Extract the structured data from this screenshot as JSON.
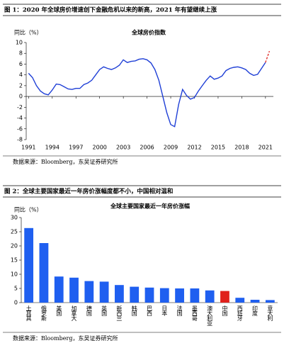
{
  "chart_data": [
    {
      "type": "line",
      "caption": "图 1：2020 年全球房价增速创下金融危机以来的新高，2021 年有望继续上涨",
      "title": "全球房价指数",
      "ylabel": "同比（%）",
      "source": "数据来源：Bloomberg，东吴证券研究所",
      "x": [
        1991,
        1991.5,
        1992,
        1992.5,
        1993,
        1993.5,
        1994,
        1994.5,
        1995,
        1995.5,
        1996,
        1996.5,
        1997,
        1997.5,
        1998,
        1998.5,
        1999,
        1999.5,
        2000,
        2000.5,
        2001,
        2001.5,
        2002,
        2002.5,
        2003,
        2003.5,
        2004,
        2004.5,
        2005,
        2005.5,
        2006,
        2006.5,
        2007,
        2007.5,
        2008,
        2008.5,
        2009,
        2009.5,
        2010,
        2010.5,
        2011,
        2011.5,
        2012,
        2012.5,
        2013,
        2013.5,
        2014,
        2014.5,
        2015,
        2015.5,
        2016,
        2016.5,
        2017,
        2017.5,
        2018,
        2018.5,
        2019,
        2019.5,
        2020,
        2020.5,
        2021,
        2021.5
      ],
      "series": [
        {
          "color": "#1f3fd6",
          "dashed": false,
          "values": [
            4.3,
            3.5,
            2,
            1,
            0.5,
            0.3,
            1.2,
            2.3,
            2.2,
            1.8,
            1.4,
            1.3,
            1.5,
            1.5,
            2.2,
            2.5,
            3,
            4,
            5,
            5.5,
            5.2,
            5,
            5.3,
            5.8,
            6.8,
            6.3,
            6.5,
            6.6,
            6.9,
            7,
            6.8,
            6.2,
            5,
            3,
            0,
            -3,
            -5.2,
            -5.6,
            -1.5,
            1.3,
            0.2,
            -0.5,
            -0.2,
            1,
            2,
            3,
            3.8,
            3.2,
            3.4,
            3.8,
            4.8,
            5.2,
            5.4,
            5.5,
            5.3,
            5,
            4.3,
            3.9,
            4.1,
            5.2,
            6.3,
            null
          ]
        },
        {
          "color": "#e0302b",
          "dashed": true,
          "values": [
            null,
            null,
            null,
            null,
            null,
            null,
            null,
            null,
            null,
            null,
            null,
            null,
            null,
            null,
            null,
            null,
            null,
            null,
            null,
            null,
            null,
            null,
            null,
            null,
            null,
            null,
            null,
            null,
            null,
            null,
            null,
            null,
            null,
            null,
            null,
            null,
            null,
            null,
            null,
            null,
            null,
            null,
            null,
            null,
            null,
            null,
            null,
            null,
            null,
            null,
            null,
            null,
            null,
            null,
            null,
            null,
            null,
            null,
            null,
            null,
            6.3,
            8.4
          ]
        }
      ],
      "xlim": [
        1990.7,
        2022
      ],
      "xticks": [
        1991,
        1994,
        1997,
        2000,
        2003,
        2006,
        2009,
        2012,
        2015,
        2018,
        2021
      ],
      "ylim": [
        -8,
        10
      ],
      "yticks": [
        -8,
        -6,
        -4,
        -2,
        0,
        2,
        4,
        6,
        8,
        10
      ]
    },
    {
      "type": "bar",
      "caption": "图 2：全球主要国家最近一年房价涨幅度都不小，中国相对温和",
      "title": "全球主要国家最近一年房价涨幅",
      "ylabel": "同比（%）",
      "source": "数据来源：Bloomberg，东吴证券研究所",
      "categories": [
        "土耳其",
        "俄罗斯",
        "美国",
        "加拿大",
        "德国",
        "英国",
        "新西兰",
        "韩国",
        "巴西",
        "日本",
        "法国",
        "墨西哥",
        "澳大利亚",
        "中国",
        "西班牙",
        "印度",
        "意大利"
      ],
      "values": [
        26.3,
        21,
        9.2,
        8.8,
        7.6,
        7.4,
        6.2,
        5.6,
        5.3,
        5.1,
        5,
        5,
        4.3,
        4.1,
        1.7,
        1,
        0.9
      ],
      "colors": [
        "#1f5ff0",
        "#1f5ff0",
        "#1f5ff0",
        "#1f5ff0",
        "#1f5ff0",
        "#1f5ff0",
        "#1f5ff0",
        "#1f5ff0",
        "#1f5ff0",
        "#1f5ff0",
        "#1f5ff0",
        "#1f5ff0",
        "#1f5ff0",
        "#e0201b",
        "#1f5ff0",
        "#1f5ff0",
        "#1f5ff0"
      ],
      "ylim": [
        0,
        30
      ],
      "yticks": [
        0,
        5,
        10,
        15,
        20,
        25,
        30
      ]
    }
  ]
}
